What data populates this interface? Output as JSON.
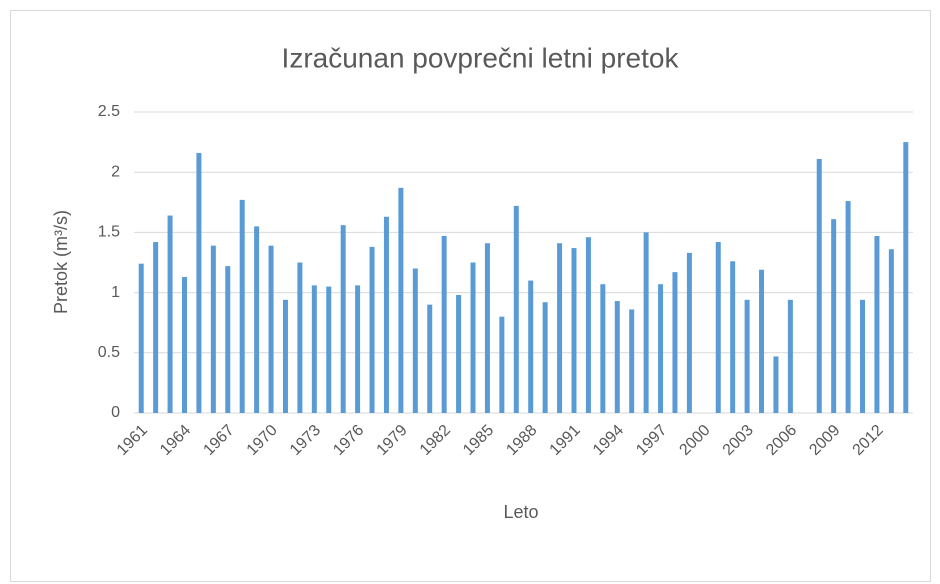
{
  "chart_data": {
    "type": "bar",
    "title": "Izračunan povprečni letni pretok",
    "x_label": "Leto",
    "y_label": "Pretok (m³/s)",
    "categories": [
      "1961",
      null,
      null,
      "1964",
      null,
      null,
      "1967",
      null,
      null,
      "1970",
      null,
      null,
      "1973",
      null,
      null,
      "1976",
      null,
      null,
      "1979",
      null,
      null,
      "1982",
      null,
      null,
      "1985",
      null,
      null,
      "1988",
      null,
      null,
      "1991",
      null,
      null,
      "1994",
      null,
      null,
      "1997",
      null,
      null,
      "2000",
      null,
      null,
      "2003",
      null,
      null,
      "2006",
      null,
      null,
      "2009",
      null,
      null,
      "2012",
      null,
      null
    ],
    "values": [
      1.24,
      1.42,
      1.64,
      1.13,
      2.16,
      1.39,
      1.22,
      1.77,
      1.55,
      1.39,
      0.94,
      1.25,
      1.06,
      1.05,
      1.56,
      1.06,
      1.38,
      1.63,
      1.87,
      1.2,
      0.9,
      1.47,
      0.98,
      1.25,
      1.41,
      0.8,
      1.72,
      1.1,
      0.92,
      1.41,
      1.37,
      1.46,
      1.07,
      0.93,
      0.86,
      1.5,
      1.07,
      1.17,
      1.33,
      null,
      1.42,
      1.26,
      0.94,
      1.19,
      0.47,
      0.94,
      null,
      2.11,
      1.61,
      1.76,
      0.94,
      1.47,
      1.36,
      2.25
    ],
    "color": "#5b9bd5",
    "ylim": [
      0,
      2.5
    ],
    "yticks": [
      0,
      0.5,
      1,
      1.5,
      2,
      2.5
    ],
    "grid": true
  }
}
